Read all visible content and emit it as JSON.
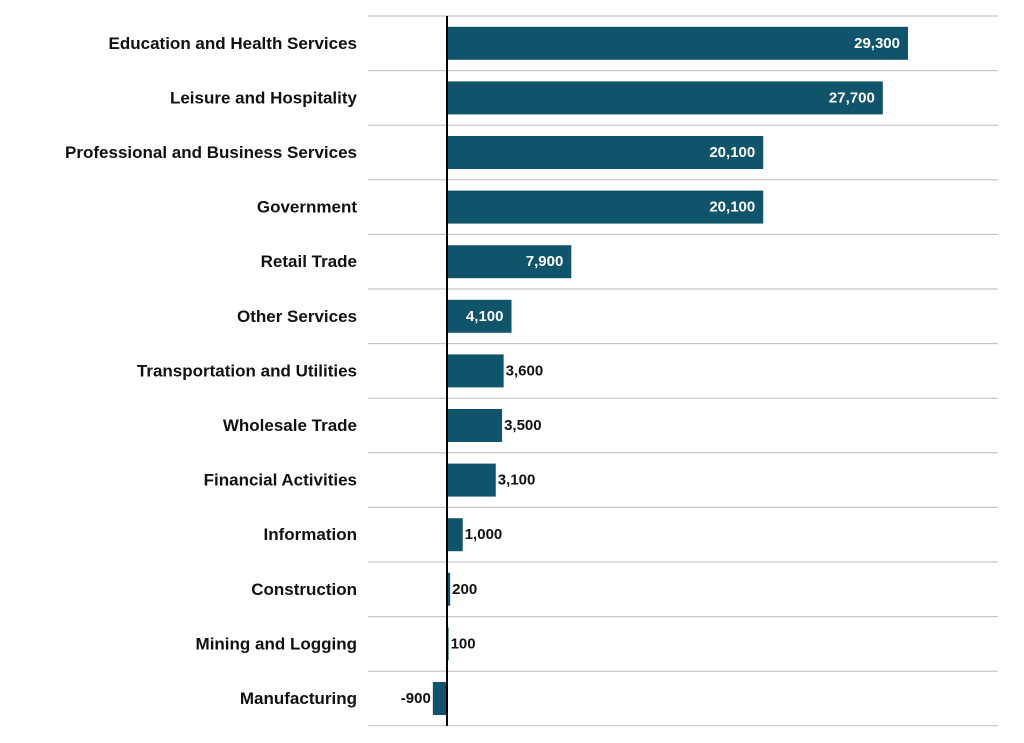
{
  "chart_data": {
    "type": "bar",
    "orientation": "horizontal",
    "categories": [
      "Education and Health Services",
      "Leisure and Hospitality",
      "Professional and Business Services",
      "Government",
      "Retail Trade",
      "Other Services",
      "Transportation and Utilities",
      "Wholesale Trade",
      "Financial Activities",
      "Information",
      "Construction",
      "Mining and Logging",
      "Manufacturing"
    ],
    "values": [
      29300,
      27700,
      20100,
      20100,
      7900,
      4100,
      3600,
      3500,
      3100,
      1000,
      200,
      100,
      -900
    ],
    "value_labels": [
      "29,300",
      "27,700",
      "20,100",
      "20,100",
      "7,900",
      "4,100",
      "3,600",
      "3,500",
      "3,100",
      "1,000",
      "200",
      "100",
      "-900"
    ],
    "xlim": [
      -5000,
      35000
    ],
    "grid": "horizontal separators",
    "legend": "none",
    "colors": {
      "bar": "#10546b",
      "label_inside": "#ffffff",
      "label_outside": "#111111",
      "grid": "#bbbbbb",
      "axis": "#000000"
    }
  }
}
